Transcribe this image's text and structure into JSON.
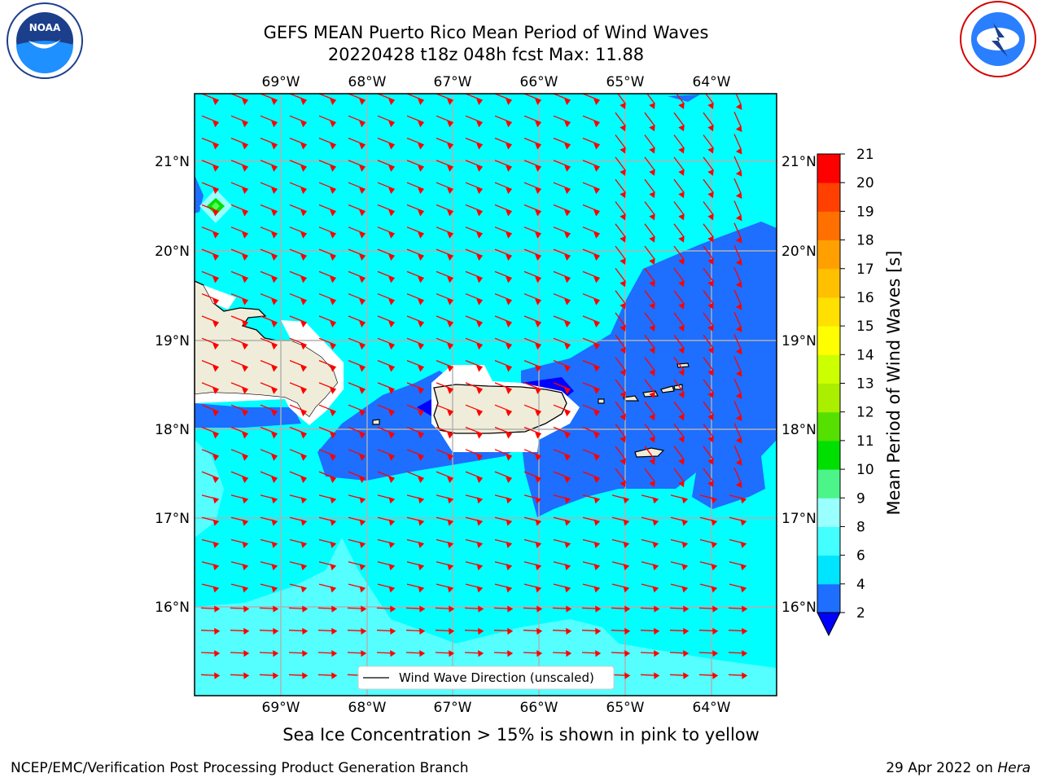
{
  "title_line1": "GEFS MEAN Puerto Rico Mean Period of Wind Waves",
  "title_line2": "20220428 t18z 048h fcst   Max: 11.88",
  "logos": {
    "left": "noaa-logo",
    "right": "nws-logo"
  },
  "lon_ticks": [
    "69°W",
    "68°W",
    "67°W",
    "66°W",
    "65°W",
    "64°W"
  ],
  "lat_ticks": [
    "21°N",
    "20°N",
    "19°N",
    "18°N",
    "17°N",
    "16°N"
  ],
  "legend_label": "Wind Wave Direction (unscaled)",
  "colorbar": {
    "label": "Mean Period of Wind Waves [s]",
    "ticks": [
      "2",
      "4",
      "6",
      "8",
      "9",
      "10",
      "11",
      "12",
      "13",
      "14",
      "15",
      "16",
      "17",
      "18",
      "19",
      "20",
      "21"
    ],
    "colors": [
      "#1e6eff",
      "#00e5ff",
      "#44ffff",
      "#99ffff",
      "#4cf58a",
      "#00e000",
      "#55e000",
      "#aaee00",
      "#ccff00",
      "#ffff00",
      "#ffe000",
      "#ffc000",
      "#ffa000",
      "#ff7000",
      "#ff4000",
      "#ff0000"
    ],
    "extend_color": "#0000ff"
  },
  "ice_note": "Sea Ice Concentration > 15% is shown in pink to yellow",
  "footer_left": "NCEP/EMC/Verification Post Processing Product Generation Branch",
  "footer_right_date": "29 Apr 2022 on ",
  "footer_right_host": "Hera",
  "colors": {
    "ocean_base": "#00ffff",
    "ocean_low": "#1e6eff",
    "ocean_mid": "#55ffff",
    "land": "#efedd9",
    "arrow": "#ff0000",
    "grid": "#b0b0b0"
  }
}
